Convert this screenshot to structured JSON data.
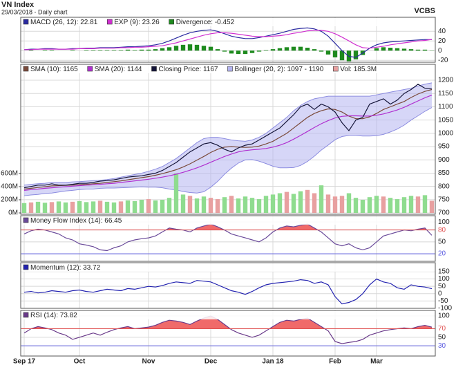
{
  "chart_data": {
    "type": "line",
    "title": "VN Index",
    "subtitle": "29/03/2018 - Daily chart",
    "source": "VCBS",
    "grid": true,
    "categories": [
      "Sep 17",
      null,
      null,
      null,
      null,
      null,
      null,
      null,
      "Oct",
      null,
      null,
      null,
      null,
      null,
      null,
      null,
      null,
      null,
      "Nov",
      null,
      null,
      null,
      null,
      null,
      null,
      null,
      null,
      "Dec",
      null,
      null,
      null,
      null,
      null,
      null,
      null,
      null,
      "Jan 18",
      null,
      null,
      null,
      null,
      null,
      null,
      null,
      null,
      "Feb",
      null,
      null,
      null,
      null,
      null,
      "Mar",
      null,
      null,
      null,
      null,
      null,
      null,
      null,
      null
    ],
    "panels": [
      {
        "type": "macd",
        "ylim": [
          -24,
          69
        ],
        "yticks": [
          40,
          20,
          0,
          -20
        ],
        "series": [
          {
            "name": "MACD (26, 12): 22.81",
            "type": "line",
            "color": "#2a2aa0",
            "values": [
              2,
              3,
              3,
              4,
              4,
              3,
              3,
              4,
              4,
              5,
              5,
              6,
              6,
              6,
              7,
              8,
              8,
              9,
              10,
              12,
              15,
              20,
              26,
              32,
              37,
              40,
              42,
              43,
              40,
              35,
              30,
              27,
              25,
              25,
              27,
              30,
              33,
              36,
              40,
              44,
              46,
              47,
              45,
              40,
              30,
              15,
              0,
              -12,
              -14,
              -5,
              5,
              12,
              16,
              18,
              19,
              20,
              21,
              22,
              23,
              22.81
            ]
          },
          {
            "name": "EXP (9): 23.26",
            "type": "line",
            "color": "#d030d0",
            "values": [
              2,
              2,
              3,
              3,
              3,
              3,
              3,
              3,
              4,
              4,
              4,
              5,
              5,
              5,
              6,
              6,
              7,
              7,
              8,
              9,
              10,
              13,
              16,
              20,
              24,
              28,
              32,
              35,
              37,
              37,
              36,
              34,
              32,
              30,
              29,
              29,
              30,
              31,
              33,
              36,
              38,
              41,
              42,
              42,
              40,
              35,
              28,
              20,
              12,
              6,
              5,
              7,
              9,
              12,
              14,
              16,
              18,
              20,
              21,
              23.26
            ]
          },
          {
            "name": "Divergence: -0.452",
            "type": "bar",
            "color": "#1e8a1e",
            "values": [
              0,
              1,
              0,
              1,
              1,
              0,
              0,
              1,
              0,
              1,
              1,
              1,
              1,
              1,
              1,
              2,
              1,
              2,
              2,
              3,
              5,
              7,
              10,
              12,
              13,
              12,
              10,
              8,
              3,
              -2,
              -6,
              -7,
              -7,
              -5,
              -2,
              1,
              3,
              5,
              7,
              8,
              8,
              6,
              3,
              -2,
              -8,
              -14,
              -20,
              -22,
              -18,
              -9,
              0,
              5,
              7,
              6,
              5,
              4,
              3,
              2,
              2,
              -0.452
            ]
          }
        ]
      },
      {
        "type": "price",
        "ylim": [
          695,
          1260
        ],
        "yticks": [
          1200,
          1150,
          1100,
          1050,
          1000,
          950,
          900,
          850,
          800,
          750,
          700
        ],
        "y2lim": [
          -21,
          2263
        ],
        "y2ticks": [
          {
            "value": 600,
            "label": "600M"
          },
          {
            "value": 400,
            "label": "400M"
          },
          {
            "value": 200,
            "label": "200M"
          },
          {
            "value": 0,
            "label": "0M"
          }
        ],
        "series": [
          {
            "name": "SMA (10): 1165",
            "type": "line",
            "color": "#7a4a3a",
            "values": [
              790,
              793,
              796,
              799,
              802,
              803,
              804,
              805,
              807,
              808,
              810,
              812,
              815,
              818,
              821,
              825,
              829,
              833,
              837,
              842,
              848,
              855,
              863,
              873,
              885,
              899,
              913,
              928,
              940,
              948,
              950,
              948,
              947,
              948,
              952,
              960,
              970,
              985,
              1000,
              1020,
              1040,
              1060,
              1075,
              1085,
              1092,
              1090,
              1080,
              1065,
              1055,
              1055,
              1062,
              1075,
              1090,
              1100,
              1110,
              1120,
              1135,
              1148,
              1158,
              1165
            ]
          },
          {
            "name": "SMA (20): 1144",
            "type": "line",
            "color": "#b030d0",
            "values": [
              785,
              788,
              790,
              793,
              795,
              797,
              799,
              801,
              803,
              805,
              806,
              808,
              810,
              812,
              815,
              818,
              821,
              824,
              827,
              831,
              835,
              840,
              846,
              853,
              861,
              870,
              880,
              891,
              902,
              913,
              922,
              930,
              935,
              938,
              940,
              943,
              948,
              955,
              965,
              978,
              992,
              1007,
              1022,
              1036,
              1048,
              1058,
              1064,
              1066,
              1066,
              1065,
              1065,
              1068,
              1073,
              1080,
              1088,
              1098,
              1110,
              1122,
              1134,
              1144
            ]
          },
          {
            "name": "Closing Price: 1167",
            "type": "line",
            "color": "#141438",
            "values": [
              795,
              800,
              805,
              805,
              810,
              805,
              805,
              808,
              812,
              812,
              815,
              820,
              822,
              825,
              830,
              835,
              838,
              840,
              845,
              850,
              860,
              875,
              890,
              910,
              930,
              945,
              960,
              965,
              955,
              940,
              930,
              945,
              955,
              960,
              975,
              990,
              1005,
              1020,
              1045,
              1070,
              1100,
              1110,
              1090,
              1110,
              1100,
              1080,
              1040,
              1010,
              1050,
              1060,
              1110,
              1120,
              1130,
              1110,
              1125,
              1150,
              1165,
              1185,
              1170,
              1167
            ]
          },
          {
            "name": "Bollinger (20, 2): 1097 - 1190",
            "type": "band",
            "color": "#b4b4f0",
            "upper": [
              805,
              808,
              810,
              812,
              815,
              815,
              815,
              817,
              818,
              820,
              822,
              823,
              826,
              830,
              835,
              840,
              845,
              850,
              857,
              865,
              875,
              890,
              905,
              925,
              945,
              965,
              980,
              985,
              985,
              980,
              975,
              972,
              970,
              975,
              985,
              1000,
              1020,
              1040,
              1060,
              1085,
              1105,
              1120,
              1130,
              1135,
              1140,
              1140,
              1140,
              1140,
              1140,
              1140,
              1140,
              1145,
              1150,
              1155,
              1160,
              1165,
              1170,
              1178,
              1185,
              1190
            ],
            "lower": [
              765,
              768,
              770,
              774,
              775,
              779,
              783,
              785,
              788,
              790,
              790,
              793,
              794,
              794,
              795,
              796,
              797,
              798,
              797,
              797,
              795,
              790,
              787,
              781,
              777,
              775,
              780,
              797,
              819,
              846,
              869,
              888,
              900,
              901,
              895,
              886,
              876,
              870,
              870,
              871,
              879,
              894,
              914,
              937,
              956,
              976,
              988,
              992,
              992,
              990,
              990,
              991,
              996,
              1005,
              1016,
              1031,
              1050,
              1066,
              1083,
              1097
            ]
          },
          {
            "name": "Vol: 185.3M",
            "type": "bar",
            "axis": "y2",
            "color": "#e8a0a0",
            "values": [
              150,
              160,
              170,
              155,
              165,
              175,
              160,
              170,
              180,
              165,
              175,
              185,
              170,
              160,
              175,
              190,
              180,
              200,
              210,
              190,
              200,
              230,
              600,
              280,
              260,
              220,
              250,
              230,
              210,
              240,
              260,
              220,
              250,
              230,
              210,
              260,
              280,
              300,
              320,
              290,
              330,
              350,
              300,
              420,
              280,
              250,
              260,
              300,
              230,
              200,
              240,
              260,
              250,
              230,
              210,
              240,
              260,
              250,
              270,
              185.3
            ],
            "colors": [
              "#8fdc8f",
              "#e8a0a0",
              "#8fdc8f",
              "#8fdc8f",
              "#e8a0a0",
              "#8fdc8f",
              "#8fdc8f",
              "#e8a0a0",
              "#8fdc8f",
              "#8fdc8f",
              "#8fdc8f",
              "#e8a0a0",
              "#8fdc8f",
              "#8fdc8f",
              "#e8a0a0",
              "#8fdc8f",
              "#8fdc8f",
              "#8fdc8f",
              "#e8a0a0",
              "#8fdc8f",
              "#8fdc8f",
              "#8fdc8f",
              "#8fdc8f",
              "#8fdc8f",
              "#e8a0a0",
              "#8fdc8f",
              "#8fdc8f",
              "#e8a0a0",
              "#e8a0a0",
              "#8fdc8f",
              "#e8a0a0",
              "#8fdc8f",
              "#8fdc8f",
              "#8fdc8f",
              "#8fdc8f",
              "#8fdc8f",
              "#8fdc8f",
              "#8fdc8f",
              "#e8a0a0",
              "#8fdc8f",
              "#8fdc8f",
              "#e8a0a0",
              "#e8a0a0",
              "#8fdc8f",
              "#e8a0a0",
              "#e8a0a0",
              "#e8a0a0",
              "#8fdc8f",
              "#8fdc8f",
              "#8fdc8f",
              "#8fdc8f",
              "#8fdc8f",
              "#e8a0a0",
              "#8fdc8f",
              "#8fdc8f",
              "#8fdc8f",
              "#8fdc8f",
              "#e8a0a0",
              "#8fdc8f",
              "#e8a0a0"
            ]
          }
        ]
      },
      {
        "type": "oscillator",
        "ylim": [
          1,
          116
        ],
        "yticks": [
          100,
          80,
          50,
          20
        ],
        "thresholds": [
          {
            "value": 80,
            "color": "#e05050",
            "fill": "#f06a6a"
          },
          {
            "value": 20,
            "color": "#5a5ae0"
          }
        ],
        "series": [
          {
            "name": "Money Flow Index (14): 66.45",
            "type": "line",
            "color": "#6a4a9a",
            "values": [
              70,
              78,
              82,
              80,
              75,
              70,
              60,
              55,
              45,
              42,
              38,
              30,
              28,
              35,
              40,
              50,
              55,
              58,
              60,
              65,
              75,
              85,
              82,
              80,
              75,
              85,
              90,
              95,
              88,
              80,
              70,
              65,
              60,
              55,
              50,
              60,
              75,
              85,
              90,
              88,
              92,
              95,
              85,
              75,
              60,
              45,
              40,
              45,
              35,
              30,
              35,
              50,
              65,
              70,
              75,
              80,
              78,
              82,
              85,
              66.45
            ]
          }
        ]
      },
      {
        "type": "oscillator",
        "ylim": [
          -100,
          211
        ],
        "yticks": [
          150,
          100,
          50,
          0,
          -50,
          -100
        ],
        "series": [
          {
            "name": "Momentum (12): 33.72",
            "type": "line",
            "color": "#2222b0",
            "values": [
              10,
              15,
              5,
              10,
              20,
              15,
              10,
              20,
              25,
              15,
              10,
              20,
              30,
              25,
              20,
              35,
              30,
              40,
              50,
              45,
              55,
              70,
              80,
              75,
              70,
              90,
              85,
              80,
              60,
              40,
              20,
              10,
              -5,
              15,
              40,
              60,
              70,
              75,
              80,
              85,
              95,
              90,
              70,
              80,
              60,
              -20,
              -70,
              -60,
              -40,
              0,
              60,
              100,
              80,
              70,
              40,
              30,
              60,
              50,
              45,
              33.72
            ]
          }
        ]
      },
      {
        "type": "oscillator",
        "ylim": [
          6,
          113
        ],
        "yticks": [
          100,
          70,
          50,
          30
        ],
        "thresholds": [
          {
            "value": 70,
            "color": "#e05050",
            "fill": "#f06a6a"
          },
          {
            "value": 30,
            "color": "#5a5ae0"
          }
        ],
        "series": [
          {
            "name": "RSI (14): 73.82",
            "type": "line",
            "color": "#6a3a8a",
            "values": [
              60,
              70,
              75,
              72,
              68,
              60,
              55,
              45,
              50,
              55,
              60,
              55,
              62,
              68,
              72,
              75,
              70,
              72,
              74,
              78,
              85,
              90,
              88,
              85,
              80,
              88,
              95,
              100,
              92,
              80,
              68,
              60,
              55,
              50,
              55,
              65,
              75,
              85,
              90,
              88,
              92,
              95,
              85,
              75,
              65,
              40,
              35,
              38,
              40,
              45,
              55,
              60,
              65,
              68,
              70,
              72,
              70,
              75,
              78,
              73.82
            ]
          }
        ]
      }
    ]
  }
}
